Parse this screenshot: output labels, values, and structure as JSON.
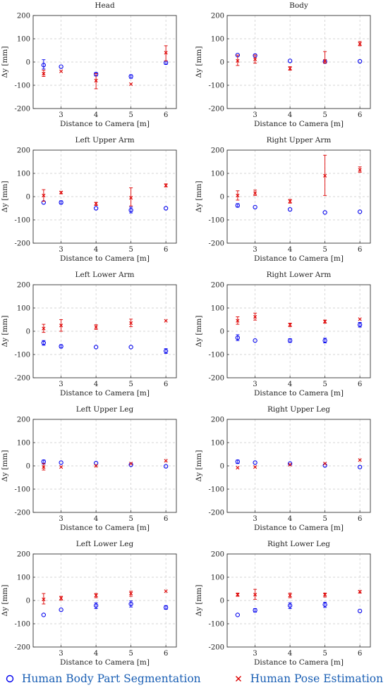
{
  "chart_data": [
    {
      "type": "scatter",
      "title": "Head",
      "xlabel": "Distance to Camera [m]",
      "ylabel": "Δy [mm]",
      "xlim": [
        2.2,
        6.3
      ],
      "ylim": [
        -200,
        200
      ],
      "xticks": [
        3,
        4,
        5,
        6
      ],
      "yticks": [
        -200,
        -100,
        0,
        100,
        200
      ],
      "grid": true,
      "series": [
        {
          "name": "Human Body Part Segmentation",
          "marker": "circle",
          "color": "#0000ee",
          "points": [
            {
              "x": 2.5,
              "y": -13,
              "lo": -30,
              "hi": 10
            },
            {
              "x": 3,
              "y": -20
            },
            {
              "x": 4,
              "y": -52,
              "lo": -60,
              "hi": -45
            },
            {
              "x": 5,
              "y": -62,
              "lo": -70,
              "hi": -55
            },
            {
              "x": 6,
              "y": -3,
              "lo": -10,
              "hi": 5
            }
          ]
        },
        {
          "name": "Human Pose Estimation",
          "marker": "x",
          "color": "#dd0000",
          "points": [
            {
              "x": 2.5,
              "y": -50,
              "lo": -62,
              "hi": -35
            },
            {
              "x": 3,
              "y": -40
            },
            {
              "x": 4,
              "y": -80,
              "lo": -115,
              "hi": -50
            },
            {
              "x": 5,
              "y": -95
            },
            {
              "x": 6,
              "y": 40,
              "lo": 5,
              "hi": 70
            }
          ]
        }
      ]
    },
    {
      "type": "scatter",
      "title": "Body",
      "xlabel": "Distance to Camera [m]",
      "ylabel": "Δy [mm]",
      "xlim": [
        2.2,
        6.3
      ],
      "ylim": [
        -200,
        200
      ],
      "xticks": [
        3,
        4,
        5,
        6
      ],
      "yticks": [
        -200,
        -100,
        0,
        100,
        200
      ],
      "grid": true,
      "series": [
        {
          "name": "Human Body Part Segmentation",
          "marker": "circle",
          "color": "#0000ee",
          "points": [
            {
              "x": 2.5,
              "y": 30
            },
            {
              "x": 3,
              "y": 28
            },
            {
              "x": 4,
              "y": 5
            },
            {
              "x": 5,
              "y": 2,
              "lo": -5,
              "hi": 8
            },
            {
              "x": 6,
              "y": 3
            }
          ]
        },
        {
          "name": "Human Pose Estimation",
          "marker": "x",
          "color": "#dd0000",
          "points": [
            {
              "x": 2.5,
              "y": 5,
              "lo": -15,
              "hi": 30
            },
            {
              "x": 3,
              "y": 12,
              "lo": -5,
              "hi": 30
            },
            {
              "x": 4,
              "y": -28,
              "lo": -35,
              "hi": -20
            },
            {
              "x": 5,
              "y": 5,
              "lo": -5,
              "hi": 45
            },
            {
              "x": 6,
              "y": 78,
              "lo": 70,
              "hi": 88
            }
          ]
        }
      ]
    },
    {
      "type": "scatter",
      "title": "Left Upper Arm",
      "xlabel": "Distance to Camera [m]",
      "ylabel": "Δy [mm]",
      "xlim": [
        2.2,
        6.3
      ],
      "ylim": [
        -200,
        200
      ],
      "xticks": [
        3,
        4,
        5,
        6
      ],
      "yticks": [
        -200,
        -100,
        0,
        100,
        200
      ],
      "grid": true,
      "series": [
        {
          "name": "Human Body Part Segmentation",
          "marker": "circle",
          "color": "#0000ee",
          "points": [
            {
              "x": 2.5,
              "y": -25
            },
            {
              "x": 3,
              "y": -25,
              "lo": -32,
              "hi": -18
            },
            {
              "x": 4,
              "y": -50
            },
            {
              "x": 5,
              "y": -58,
              "lo": -70,
              "hi": -45
            },
            {
              "x": 6,
              "y": -50
            }
          ]
        },
        {
          "name": "Human Pose Estimation",
          "marker": "x",
          "color": "#dd0000",
          "points": [
            {
              "x": 2.5,
              "y": 5,
              "lo": -20,
              "hi": 30
            },
            {
              "x": 3,
              "y": 18,
              "lo": 12,
              "hi": 22
            },
            {
              "x": 4,
              "y": -30,
              "lo": -38,
              "hi": -25
            },
            {
              "x": 5,
              "y": -5,
              "lo": -40,
              "hi": 38
            },
            {
              "x": 6,
              "y": 48,
              "lo": 42,
              "hi": 55
            }
          ]
        }
      ]
    },
    {
      "type": "scatter",
      "title": "Right Upper Arm",
      "xlabel": "Distance to Camera [m]",
      "ylabel": "Δy [mm]",
      "xlim": [
        2.2,
        6.3
      ],
      "ylim": [
        -200,
        200
      ],
      "xticks": [
        3,
        4,
        5,
        6
      ],
      "yticks": [
        -200,
        -100,
        0,
        100,
        200
      ],
      "grid": true,
      "series": [
        {
          "name": "Human Body Part Segmentation",
          "marker": "circle",
          "color": "#0000ee",
          "points": [
            {
              "x": 2.5,
              "y": -38,
              "lo": -45,
              "hi": -30
            },
            {
              "x": 3,
              "y": -45
            },
            {
              "x": 4,
              "y": -55
            },
            {
              "x": 5,
              "y": -68
            },
            {
              "x": 6,
              "y": -65
            }
          ]
        },
        {
          "name": "Human Pose Estimation",
          "marker": "x",
          "color": "#dd0000",
          "points": [
            {
              "x": 2.5,
              "y": 5,
              "lo": -15,
              "hi": 25
            },
            {
              "x": 3,
              "y": 15,
              "lo": 5,
              "hi": 28
            },
            {
              "x": 4,
              "y": -20,
              "lo": -28,
              "hi": -12
            },
            {
              "x": 5,
              "y": 90,
              "lo": 5,
              "hi": 178
            },
            {
              "x": 6,
              "y": 115,
              "lo": 105,
              "hi": 128
            }
          ]
        }
      ]
    },
    {
      "type": "scatter",
      "title": "Left Lower Arm",
      "xlabel": "Distance to Camera [m]",
      "ylabel": "Δy [mm]",
      "xlim": [
        2.2,
        6.3
      ],
      "ylim": [
        -200,
        200
      ],
      "xticks": [
        3,
        4,
        5,
        6
      ],
      "yticks": [
        -200,
        -100,
        0,
        100,
        200
      ],
      "grid": true,
      "series": [
        {
          "name": "Human Body Part Segmentation",
          "marker": "circle",
          "color": "#0000ee",
          "points": [
            {
              "x": 2.5,
              "y": -50,
              "lo": -60,
              "hi": -40
            },
            {
              "x": 3,
              "y": -65,
              "lo": -72,
              "hi": -58
            },
            {
              "x": 4,
              "y": -68
            },
            {
              "x": 5,
              "y": -68
            },
            {
              "x": 6,
              "y": -85,
              "lo": -95,
              "hi": -75
            }
          ]
        },
        {
          "name": "Human Pose Estimation",
          "marker": "x",
          "color": "#dd0000",
          "points": [
            {
              "x": 2.5,
              "y": 12,
              "lo": -5,
              "hi": 30
            },
            {
              "x": 3,
              "y": 25,
              "lo": 0,
              "hi": 50
            },
            {
              "x": 4,
              "y": 18,
              "lo": 8,
              "hi": 28
            },
            {
              "x": 5,
              "y": 35,
              "lo": 20,
              "hi": 52
            },
            {
              "x": 6,
              "y": 45
            }
          ]
        }
      ]
    },
    {
      "type": "scatter",
      "title": "Right Lower Arm",
      "xlabel": "Distance to Camera [m]",
      "ylabel": "Δy [mm]",
      "xlim": [
        2.2,
        6.3
      ],
      "ylim": [
        -200,
        200
      ],
      "xticks": [
        3,
        4,
        5,
        6
      ],
      "yticks": [
        -200,
        -100,
        0,
        100,
        200
      ],
      "grid": true,
      "series": [
        {
          "name": "Human Body Part Segmentation",
          "marker": "circle",
          "color": "#0000ee",
          "points": [
            {
              "x": 2.5,
              "y": -28,
              "lo": -40,
              "hi": -15
            },
            {
              "x": 3,
              "y": -40
            },
            {
              "x": 4,
              "y": -40,
              "lo": -48,
              "hi": -32
            },
            {
              "x": 5,
              "y": -40,
              "lo": -50,
              "hi": -30
            },
            {
              "x": 6,
              "y": 28,
              "lo": 18,
              "hi": 38
            }
          ]
        },
        {
          "name": "Human Pose Estimation",
          "marker": "x",
          "color": "#dd0000",
          "points": [
            {
              "x": 2.5,
              "y": 45,
              "lo": 30,
              "hi": 62
            },
            {
              "x": 3,
              "y": 62,
              "lo": 48,
              "hi": 78
            },
            {
              "x": 4,
              "y": 28,
              "lo": 20,
              "hi": 35
            },
            {
              "x": 5,
              "y": 42,
              "lo": 35,
              "hi": 48
            },
            {
              "x": 6,
              "y": 52
            }
          ]
        }
      ]
    },
    {
      "type": "scatter",
      "title": "Left Upper Leg",
      "xlabel": "Distance to Camera [m]",
      "ylabel": "Δy [mm]",
      "xlim": [
        2.2,
        6.3
      ],
      "ylim": [
        -200,
        200
      ],
      "xticks": [
        3,
        4,
        5,
        6
      ],
      "yticks": [
        -200,
        -100,
        0,
        100,
        200
      ],
      "grid": true,
      "series": [
        {
          "name": "Human Body Part Segmentation",
          "marker": "circle",
          "color": "#0000ee",
          "points": [
            {
              "x": 2.5,
              "y": 18,
              "lo": 8,
              "hi": 25
            },
            {
              "x": 3,
              "y": 14
            },
            {
              "x": 4,
              "y": 12
            },
            {
              "x": 5,
              "y": 5
            },
            {
              "x": 6,
              "y": -2
            }
          ]
        },
        {
          "name": "Human Pose Estimation",
          "marker": "x",
          "color": "#dd0000",
          "points": [
            {
              "x": 2.5,
              "y": -5,
              "lo": -18,
              "hi": 10
            },
            {
              "x": 3,
              "y": -5
            },
            {
              "x": 4,
              "y": 0
            },
            {
              "x": 5,
              "y": 10
            },
            {
              "x": 6,
              "y": 22
            }
          ]
        }
      ]
    },
    {
      "type": "scatter",
      "title": "Right Upper Leg",
      "xlabel": "Distance to Camera [m]",
      "ylabel": "Δy [mm]",
      "xlim": [
        2.2,
        6.3
      ],
      "ylim": [
        -200,
        200
      ],
      "xticks": [
        3,
        4,
        5,
        6
      ],
      "yticks": [
        -200,
        -100,
        0,
        100,
        200
      ],
      "grid": true,
      "series": [
        {
          "name": "Human Body Part Segmentation",
          "marker": "circle",
          "color": "#0000ee",
          "points": [
            {
              "x": 2.5,
              "y": 18,
              "lo": 10,
              "hi": 25
            },
            {
              "x": 3,
              "y": 14
            },
            {
              "x": 4,
              "y": 10
            },
            {
              "x": 5,
              "y": 2
            },
            {
              "x": 6,
              "y": -5
            }
          ]
        },
        {
          "name": "Human Pose Estimation",
          "marker": "x",
          "color": "#dd0000",
          "points": [
            {
              "x": 2.5,
              "y": -8
            },
            {
              "x": 3,
              "y": -5
            },
            {
              "x": 4,
              "y": 5
            },
            {
              "x": 5,
              "y": 10
            },
            {
              "x": 6,
              "y": 25
            }
          ]
        }
      ]
    },
    {
      "type": "scatter",
      "title": "Left Lower Leg",
      "xlabel": "Distance to Camera [m]",
      "ylabel": "Δy [mm]",
      "xlim": [
        2.2,
        6.3
      ],
      "ylim": [
        -200,
        200
      ],
      "xticks": [
        3,
        4,
        5,
        6
      ],
      "yticks": [
        -200,
        -100,
        0,
        100,
        200
      ],
      "grid": true,
      "series": [
        {
          "name": "Human Body Part Segmentation",
          "marker": "circle",
          "color": "#0000ee",
          "points": [
            {
              "x": 2.5,
              "y": -62
            },
            {
              "x": 3,
              "y": -40
            },
            {
              "x": 4,
              "y": -22,
              "lo": -35,
              "hi": -10
            },
            {
              "x": 5,
              "y": -15,
              "lo": -28,
              "hi": -2
            },
            {
              "x": 6,
              "y": -30,
              "lo": -38,
              "hi": -22
            }
          ]
        },
        {
          "name": "Human Pose Estimation",
          "marker": "x",
          "color": "#dd0000",
          "points": [
            {
              "x": 2.5,
              "y": 5,
              "lo": -15,
              "hi": 30
            },
            {
              "x": 3,
              "y": 10,
              "lo": 2,
              "hi": 18
            },
            {
              "x": 4,
              "y": 22,
              "lo": 12,
              "hi": 30
            },
            {
              "x": 5,
              "y": 30,
              "lo": 18,
              "hi": 40
            },
            {
              "x": 6,
              "y": 40
            }
          ]
        }
      ]
    },
    {
      "type": "scatter",
      "title": "Right Lower Leg",
      "xlabel": "Distance to Camera [m]",
      "ylabel": "Δy [mm]",
      "xlim": [
        2.2,
        6.3
      ],
      "ylim": [
        -200,
        200
      ],
      "xticks": [
        3,
        4,
        5,
        6
      ],
      "yticks": [
        -200,
        -100,
        0,
        100,
        200
      ],
      "grid": true,
      "series": [
        {
          "name": "Human Body Part Segmentation",
          "marker": "circle",
          "color": "#0000ee",
          "points": [
            {
              "x": 2.5,
              "y": -62
            },
            {
              "x": 3,
              "y": -42,
              "lo": -50,
              "hi": -35
            },
            {
              "x": 4,
              "y": -22,
              "lo": -35,
              "hi": -10
            },
            {
              "x": 5,
              "y": -18,
              "lo": -30,
              "hi": -8
            },
            {
              "x": 6,
              "y": -45
            }
          ]
        },
        {
          "name": "Human Pose Estimation",
          "marker": "x",
          "color": "#dd0000",
          "points": [
            {
              "x": 2.5,
              "y": 25,
              "lo": 18,
              "hi": 32
            },
            {
              "x": 3,
              "y": 25,
              "lo": 5,
              "hi": 48
            },
            {
              "x": 4,
              "y": 22,
              "lo": 12,
              "hi": 32
            },
            {
              "x": 5,
              "y": 25,
              "lo": 15,
              "hi": 32
            },
            {
              "x": 6,
              "y": 38,
              "lo": 32,
              "hi": 42
            }
          ]
        }
      ]
    }
  ],
  "legend": {
    "placement": "bottom",
    "items": [
      {
        "label": "Human Body Part Segmentation",
        "marker": "circle",
        "color": "#0000ee"
      },
      {
        "label": "Human Pose Estimation",
        "marker": "x",
        "color": "#dd0000"
      }
    ]
  }
}
